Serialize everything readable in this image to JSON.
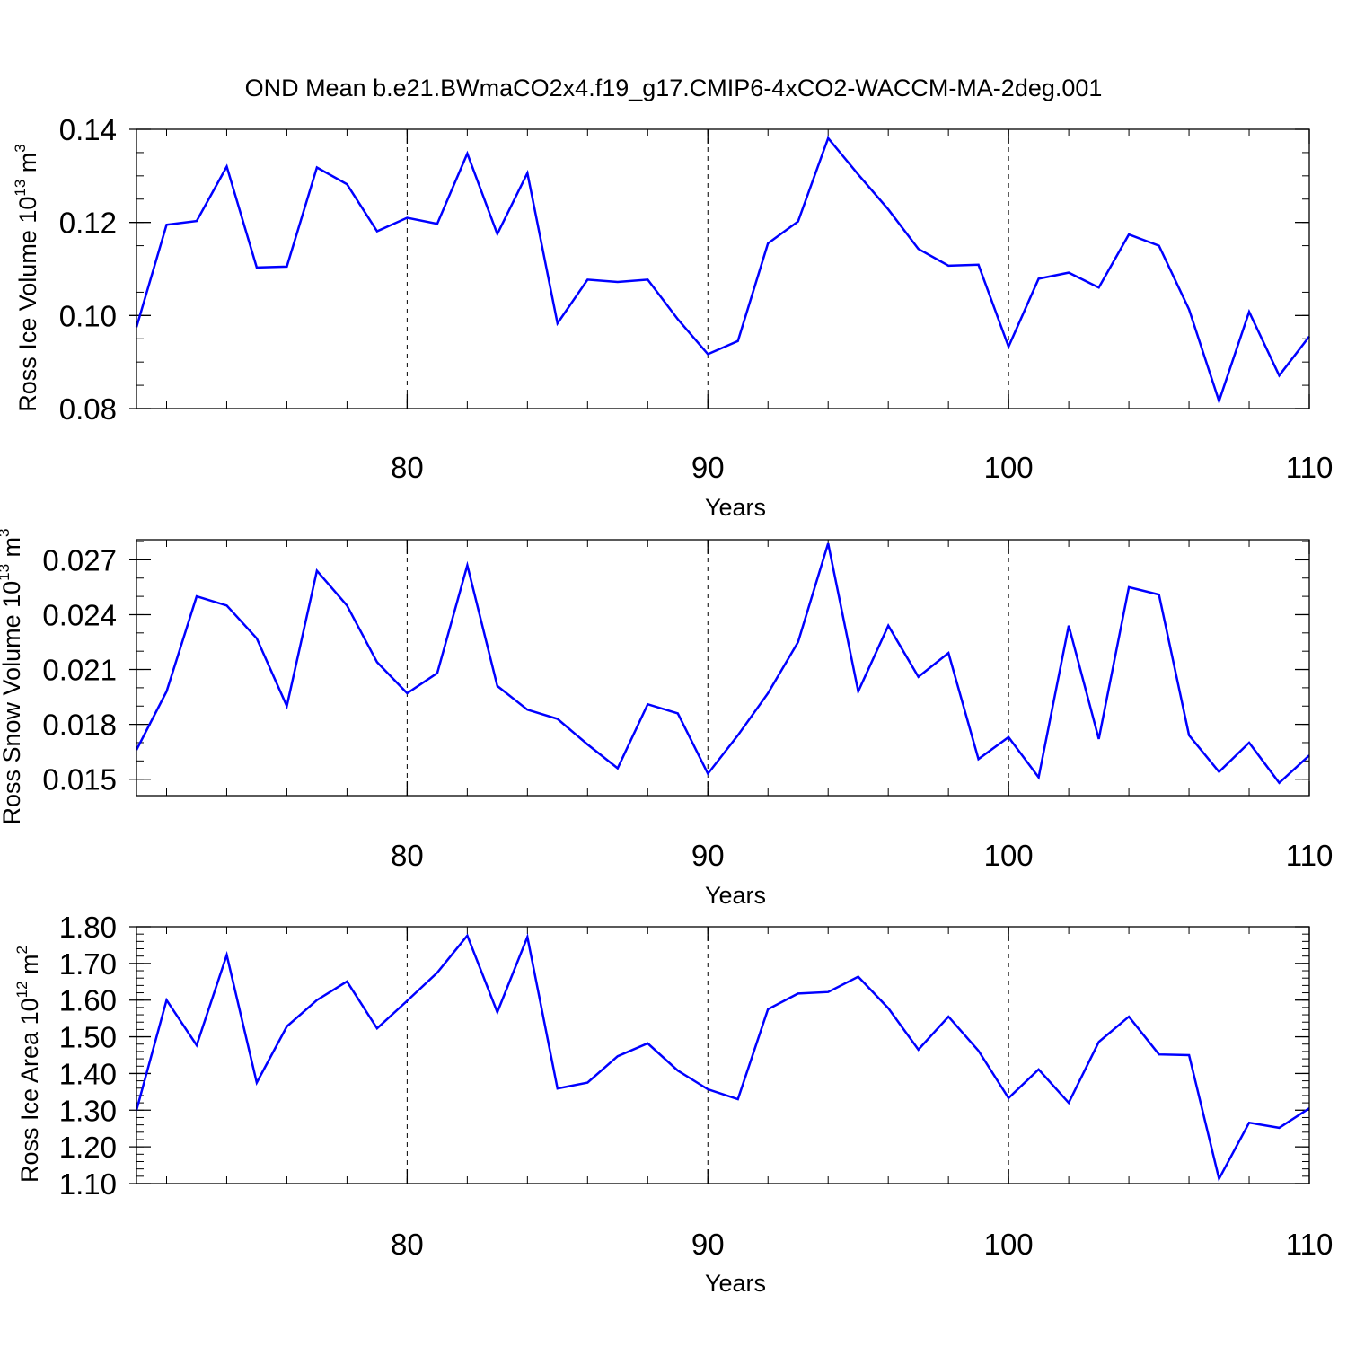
{
  "title": "OND Mean b.e21.BWmaCO2x4.f19_g17.CMIP6-4xCO2-WACCM-MA-2deg.001",
  "colors": {
    "line": "#0000ff",
    "frame": "#000000",
    "grid": "#000000"
  },
  "chart_data": [
    {
      "type": "line",
      "xlabel": "Years",
      "ylabel": {
        "text": "Ross Ice Volume 10",
        "exp": "13",
        "unit": " m",
        "unit_exp": "3"
      },
      "xlim": [
        71,
        110
      ],
      "ylim": [
        0.08,
        0.14
      ],
      "xticks": [
        80,
        90,
        100,
        110
      ],
      "xtick_labels": [
        "80",
        "90",
        "100",
        "110"
      ],
      "yticks": [
        0.08,
        0.1,
        0.12,
        0.14
      ],
      "ytick_labels": [
        "0.08",
        "0.10",
        "0.12",
        "0.14"
      ],
      "grid": "vertical dashed at major x ticks",
      "series": [
        {
          "x": [
            71,
            72,
            73,
            74,
            75,
            76,
            77,
            78,
            79,
            80,
            81,
            82,
            83,
            84,
            85,
            86,
            87,
            88,
            89,
            90,
            91,
            92,
            93,
            94,
            95,
            96,
            97,
            98,
            99,
            100,
            101,
            102,
            103,
            104,
            105,
            106,
            107,
            108,
            109,
            110
          ],
          "values": [
            0.0975,
            0.1195,
            0.1203,
            0.132,
            0.1103,
            0.1105,
            0.1318,
            0.1282,
            0.1181,
            0.121,
            0.1197,
            0.1348,
            0.1175,
            0.1306,
            0.0983,
            0.1077,
            0.1072,
            0.1077,
            0.0992,
            0.0917,
            0.0945,
            0.1155,
            0.1202,
            0.1381,
            0.1303,
            0.1228,
            0.1143,
            0.1107,
            0.1109,
            0.0933,
            0.1079,
            0.1092,
            0.106,
            0.1174,
            0.115,
            0.1013,
            0.0816,
            0.1008,
            0.0871,
            0.0955
          ]
        }
      ]
    },
    {
      "type": "line",
      "xlabel": "Years",
      "ylabel": {
        "text": "Ross Snow Volume 10",
        "exp": "13",
        "unit": " m",
        "unit_exp": "3"
      },
      "xlim": [
        71,
        110
      ],
      "ylim": [
        0.0141,
        0.0281
      ],
      "xticks": [
        80,
        90,
        100,
        110
      ],
      "xtick_labels": [
        "80",
        "90",
        "100",
        "110"
      ],
      "yticks": [
        0.015,
        0.018,
        0.021,
        0.024,
        0.027
      ],
      "ytick_labels": [
        "0.015",
        "0.018",
        "0.021",
        "0.024",
        "0.027"
      ],
      "grid": "vertical dashed at major x ticks",
      "series": [
        {
          "x": [
            71,
            72,
            73,
            74,
            75,
            76,
            77,
            78,
            79,
            80,
            81,
            82,
            83,
            84,
            85,
            86,
            87,
            88,
            89,
            90,
            91,
            92,
            93,
            94,
            95,
            96,
            97,
            98,
            99,
            100,
            101,
            102,
            103,
            104,
            105,
            106,
            107,
            108,
            109,
            110
          ],
          "values": [
            0.0166,
            0.0198,
            0.025,
            0.0245,
            0.0227,
            0.019,
            0.0264,
            0.0245,
            0.0214,
            0.0197,
            0.0208,
            0.0267,
            0.0201,
            0.0188,
            0.0183,
            0.0169,
            0.0156,
            0.0191,
            0.0186,
            0.0153,
            0.0174,
            0.0197,
            0.0225,
            0.0279,
            0.0198,
            0.0234,
            0.0206,
            0.0219,
            0.0161,
            0.0173,
            0.0151,
            0.0234,
            0.0172,
            0.0255,
            0.0251,
            0.0174,
            0.0154,
            0.017,
            0.0148,
            0.0163
          ]
        }
      ]
    },
    {
      "type": "line",
      "xlabel": "Years",
      "ylabel": {
        "text": "Ross Ice Area 10",
        "exp": "12",
        "unit": " m",
        "unit_exp": "2"
      },
      "xlim": [
        71,
        110
      ],
      "ylim": [
        1.1,
        1.8
      ],
      "xticks": [
        80,
        90,
        100,
        110
      ],
      "xtick_labels": [
        "80",
        "90",
        "100",
        "110"
      ],
      "yticks": [
        1.1,
        1.2,
        1.3,
        1.4,
        1.5,
        1.6,
        1.7,
        1.8
      ],
      "ytick_labels": [
        "1.10",
        "1.20",
        "1.30",
        "1.40",
        "1.50",
        "1.60",
        "1.70",
        "1.80"
      ],
      "grid": "vertical dashed at major x ticks",
      "series": [
        {
          "x": [
            71,
            72,
            73,
            74,
            75,
            76,
            77,
            78,
            79,
            80,
            81,
            82,
            83,
            84,
            85,
            86,
            87,
            88,
            89,
            90,
            91,
            92,
            93,
            94,
            95,
            96,
            97,
            98,
            99,
            100,
            101,
            102,
            103,
            104,
            105,
            106,
            107,
            108,
            109,
            110
          ],
          "values": [
            1.3,
            1.6,
            1.477,
            1.723,
            1.375,
            1.528,
            1.6,
            1.651,
            1.523,
            1.598,
            1.675,
            1.776,
            1.567,
            1.772,
            1.359,
            1.375,
            1.447,
            1.482,
            1.408,
            1.357,
            1.33,
            1.575,
            1.618,
            1.622,
            1.664,
            1.578,
            1.465,
            1.555,
            1.462,
            1.333,
            1.411,
            1.32,
            1.486,
            1.555,
            1.452,
            1.45,
            1.113,
            1.266,
            1.252,
            1.305
          ]
        }
      ]
    }
  ]
}
